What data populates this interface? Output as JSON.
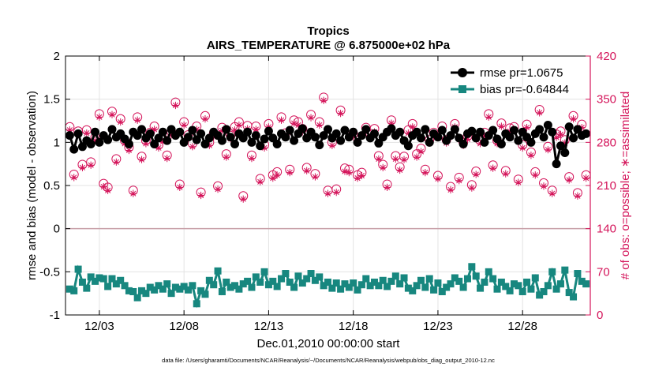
{
  "chart_data": {
    "type": "line",
    "title": "Tropics",
    "subtitle": "AIRS_TEMPERATURE @ 6.875000e+02 hPa",
    "xlabel": "Dec.01,2010 00:00:00 start",
    "ylabel": "rmse and bias (model - observation)",
    "ylabel_right": "# of obs: o=possible; ∗=assimilated",
    "footnote": "data file: /Users/gharamti/Documents/NCAR/Reanalysis/~/Documents/NCAR/Reanalysis/webpub/obs_diag_output_2010-12.nc",
    "xlim": [
      1.0,
      32.0
    ],
    "ylim": [
      -1,
      2
    ],
    "ylim_right": [
      0,
      420
    ],
    "x_ticks": [
      3,
      8,
      13,
      18,
      23,
      28
    ],
    "x_tick_labels": [
      "12/03",
      "12/08",
      "12/13",
      "12/18",
      "12/23",
      "12/28"
    ],
    "y_ticks": [
      -1,
      -0.5,
      0,
      0.5,
      1,
      1.5,
      2
    ],
    "y_tick_labels": [
      "-1",
      "-0.5",
      "0",
      "0.5",
      "1",
      "1.5",
      "2"
    ],
    "y_ticks_right": [
      0,
      70,
      140,
      210,
      280,
      350,
      420
    ],
    "y_tick_labels_right": [
      "0",
      "70",
      "140",
      "210",
      "280",
      "350",
      "420"
    ],
    "grid": true,
    "legend_position": "top-right",
    "zero_line_color": "#c8a0a8",
    "right_axis_color": "#d4145a",
    "series": [
      {
        "name": "rmse pr=1.0675",
        "axis": "left",
        "color": "#000000",
        "marker": "circle",
        "x": [
          1.25,
          1.5,
          1.75,
          2.0,
          2.25,
          2.5,
          2.75,
          3.0,
          3.25,
          3.5,
          3.75,
          4.0,
          4.25,
          4.5,
          4.75,
          5.0,
          5.25,
          5.5,
          5.75,
          6.0,
          6.25,
          6.5,
          6.75,
          7.0,
          7.25,
          7.5,
          7.75,
          8.0,
          8.25,
          8.5,
          8.75,
          9.0,
          9.25,
          9.5,
          9.75,
          10.0,
          10.25,
          10.5,
          10.75,
          11.0,
          11.25,
          11.5,
          11.75,
          12.0,
          12.25,
          12.5,
          12.75,
          13.0,
          13.25,
          13.5,
          13.75,
          14.0,
          14.25,
          14.5,
          14.75,
          15.0,
          15.25,
          15.5,
          15.75,
          16.0,
          16.25,
          16.5,
          16.75,
          17.0,
          17.25,
          17.5,
          17.75,
          18.0,
          18.25,
          18.5,
          18.75,
          19.0,
          19.25,
          19.5,
          19.75,
          20.0,
          20.25,
          20.5,
          20.75,
          21.0,
          21.25,
          21.5,
          21.75,
          22.0,
          22.25,
          22.5,
          22.75,
          23.0,
          23.25,
          23.5,
          23.75,
          24.0,
          24.25,
          24.5,
          24.75,
          25.0,
          25.25,
          25.5,
          25.75,
          26.0,
          26.25,
          26.5,
          26.75,
          27.0,
          27.25,
          27.5,
          27.75,
          28.0,
          28.25,
          28.5,
          28.75,
          29.0,
          29.25,
          29.5,
          29.75,
          30.0,
          30.25,
          30.5,
          30.75,
          31.0,
          31.25,
          31.5,
          31.75
        ],
        "values": [
          1.08,
          0.92,
          1.1,
          0.95,
          1.02,
          0.98,
          1.12,
          1.0,
          1.08,
          1.03,
          1.15,
          1.06,
          1.1,
          1.04,
          0.98,
          1.12,
          1.08,
          1.15,
          1.05,
          1.1,
          0.98,
          1.05,
          1.12,
          1.02,
          1.15,
          1.08,
          1.12,
          1.0,
          1.06,
          1.14,
          1.03,
          1.1,
          0.98,
          1.05,
          1.12,
          1.08,
          1.02,
          1.15,
          1.06,
          0.98,
          1.1,
          1.05,
          1.12,
          1.0,
          1.08,
          0.96,
          1.04,
          1.13,
          1.05,
          0.98,
          1.1,
          1.06,
          1.14,
          1.02,
          1.1,
          1.16,
          1.05,
          1.12,
          1.06,
          0.97,
          1.08,
          1.15,
          1.05,
          1.1,
          1.02,
          1.14,
          1.06,
          1.12,
          1.0,
          1.08,
          1.15,
          1.05,
          1.1,
          0.99,
          1.06,
          1.12,
          1.16,
          1.08,
          1.12,
          1.02,
          0.96,
          1.08,
          1.12,
          1.05,
          1.15,
          1.0,
          1.1,
          1.06,
          1.14,
          1.02,
          1.08,
          1.15,
          1.05,
          0.98,
          1.1,
          1.13,
          1.05,
          1.12,
          1.0,
          1.08,
          1.14,
          1.04,
          0.98,
          1.1,
          1.06,
          1.14,
          1.02,
          1.12,
          1.06,
          1.0,
          1.1,
          1.15,
          1.06,
          1.2,
          1.12,
          0.75,
          0.96,
          0.88,
          1.18,
          1.05,
          1.15,
          1.08,
          1.1
        ]
      },
      {
        "name": "bias pr=-0.64844",
        "axis": "left",
        "color": "#17877f",
        "marker": "square",
        "x": [
          1.25,
          1.5,
          1.75,
          2.0,
          2.25,
          2.5,
          2.75,
          3.0,
          3.25,
          3.5,
          3.75,
          4.0,
          4.25,
          4.5,
          4.75,
          5.0,
          5.25,
          5.5,
          5.75,
          6.0,
          6.25,
          6.5,
          6.75,
          7.0,
          7.25,
          7.5,
          7.75,
          8.0,
          8.25,
          8.5,
          8.75,
          9.0,
          9.25,
          9.5,
          9.75,
          10.0,
          10.25,
          10.5,
          10.75,
          11.0,
          11.25,
          11.5,
          11.75,
          12.0,
          12.25,
          12.5,
          12.75,
          13.0,
          13.25,
          13.5,
          13.75,
          14.0,
          14.25,
          14.5,
          14.75,
          15.0,
          15.25,
          15.5,
          15.75,
          16.0,
          16.25,
          16.5,
          16.75,
          17.0,
          17.25,
          17.5,
          17.75,
          18.0,
          18.25,
          18.5,
          18.75,
          19.0,
          19.25,
          19.5,
          19.75,
          20.0,
          20.25,
          20.5,
          20.75,
          21.0,
          21.25,
          21.5,
          21.75,
          22.0,
          22.25,
          22.5,
          22.75,
          23.0,
          23.25,
          23.5,
          23.75,
          24.0,
          24.25,
          24.5,
          24.75,
          25.0,
          25.25,
          25.5,
          25.75,
          26.0,
          26.25,
          26.5,
          26.75,
          27.0,
          27.25,
          27.5,
          27.75,
          28.0,
          28.25,
          28.5,
          28.75,
          29.0,
          29.25,
          29.5,
          29.75,
          30.0,
          30.25,
          30.5,
          30.75,
          31.0,
          31.25,
          31.5,
          31.75
        ],
        "values": [
          -0.7,
          -0.72,
          -0.47,
          -0.62,
          -0.69,
          -0.56,
          -0.61,
          -0.57,
          -0.58,
          -0.67,
          -0.58,
          -0.64,
          -0.6,
          -0.66,
          -0.72,
          -0.73,
          -0.8,
          -0.72,
          -0.75,
          -0.68,
          -0.71,
          -0.66,
          -0.7,
          -0.64,
          -0.75,
          -0.68,
          -0.7,
          -0.67,
          -0.71,
          -0.66,
          -0.87,
          -0.72,
          -0.76,
          -0.6,
          -0.65,
          -0.49,
          -0.73,
          -0.62,
          -0.68,
          -0.66,
          -0.7,
          -0.64,
          -0.61,
          -0.68,
          -0.56,
          -0.62,
          -0.5,
          -0.65,
          -0.61,
          -0.67,
          -0.58,
          -0.52,
          -0.62,
          -0.68,
          -0.55,
          -0.63,
          -0.58,
          -0.52,
          -0.6,
          -0.56,
          -0.66,
          -0.62,
          -0.69,
          -0.63,
          -0.7,
          -0.64,
          -0.68,
          -0.63,
          -0.71,
          -0.65,
          -0.58,
          -0.66,
          -0.62,
          -0.66,
          -0.6,
          -0.67,
          -0.61,
          -0.55,
          -0.64,
          -0.57,
          -0.69,
          -0.72,
          -0.66,
          -0.6,
          -0.68,
          -0.58,
          -0.71,
          -0.63,
          -0.73,
          -0.68,
          -0.64,
          -0.57,
          -0.61,
          -0.68,
          -0.58,
          -0.44,
          -0.55,
          -0.69,
          -0.62,
          -0.5,
          -0.58,
          -0.7,
          -0.62,
          -0.67,
          -0.72,
          -0.64,
          -0.66,
          -0.73,
          -0.62,
          -0.7,
          -0.57,
          -0.77,
          -0.73,
          -0.66,
          -0.5,
          -0.7,
          -0.64,
          -0.48,
          -0.74,
          -0.79,
          -0.52,
          -0.61,
          -0.64
        ]
      },
      {
        "name": "# of obs possible",
        "axis": "right",
        "color": "#d4145a",
        "marker": "circle-open",
        "x": [
          1.25,
          1.5,
          1.75,
          2.0,
          2.25,
          2.5,
          2.75,
          3.0,
          3.25,
          3.5,
          3.75,
          4.0,
          4.25,
          4.5,
          4.75,
          5.0,
          5.25,
          5.5,
          5.75,
          6.0,
          6.25,
          6.5,
          6.75,
          7.0,
          7.25,
          7.5,
          7.75,
          8.0,
          8.25,
          8.5,
          8.75,
          9.0,
          9.25,
          9.5,
          9.75,
          10.0,
          10.25,
          10.5,
          10.75,
          11.0,
          11.25,
          11.5,
          11.75,
          12.0,
          12.25,
          12.5,
          12.75,
          13.0,
          13.25,
          13.5,
          13.75,
          14.0,
          14.25,
          14.5,
          14.75,
          15.0,
          15.25,
          15.5,
          15.75,
          16.0,
          16.25,
          16.5,
          16.75,
          17.0,
          17.25,
          17.5,
          17.75,
          18.0,
          18.25,
          18.5,
          18.75,
          19.0,
          19.25,
          19.5,
          19.75,
          20.0,
          20.25,
          20.5,
          20.75,
          21.0,
          21.25,
          21.5,
          21.75,
          22.0,
          22.25,
          22.5,
          22.75,
          23.0,
          23.25,
          23.5,
          23.75,
          24.0,
          24.25,
          24.5,
          24.75,
          25.0,
          25.25,
          25.5,
          25.75,
          26.0,
          26.25,
          26.5,
          26.75,
          27.0,
          27.25,
          27.5,
          27.75,
          28.0,
          28.25,
          28.5,
          28.75,
          29.0,
          29.25,
          29.5,
          29.75,
          30.0,
          30.25,
          30.5,
          30.75,
          31.0,
          31.25,
          31.5,
          31.75
        ],
        "values": [
          305,
          228,
          298,
          244,
          300,
          248,
          288,
          326,
          213,
          207,
          330,
          253,
          318,
          283,
          272,
          202,
          321,
          257,
          283,
          296,
          306,
          276,
          286,
          259,
          297,
          345,
          212,
          313,
          292,
          278,
          306,
          199,
          323,
          280,
          294,
          209,
          304,
          261,
          291,
          305,
          313,
          193,
          307,
          259,
          306,
          221,
          276,
          310,
          227,
          232,
          321,
          295,
          236,
          316,
          313,
          302,
          239,
          325,
          229,
          313,
          353,
          202,
          280,
          204,
          332,
          238,
          236,
          294,
          227,
          231,
          304,
          294,
          302,
          258,
          244,
          212,
          316,
          258,
          240,
          257,
          300,
          310,
          261,
          270,
          236,
          284,
          296,
          226,
          306,
          284,
          208,
          310,
          223,
          280,
          290,
          211,
          233,
          283,
          296,
          326,
          243,
          283,
          311,
          234,
          303,
          305,
          220,
          276,
          309,
          264,
          232,
          333,
          214,
          273,
          202,
          293,
          298,
          284,
          224,
          323,
          198,
          309,
          227
        ]
      },
      {
        "name": "# of obs assimilated",
        "axis": "right",
        "color": "#d4145a",
        "marker": "asterisk",
        "x": [
          1.25,
          1.5,
          1.75,
          2.0,
          2.25,
          2.5,
          2.75,
          3.0,
          3.25,
          3.5,
          3.75,
          4.0,
          4.25,
          4.5,
          4.75,
          5.0,
          5.25,
          5.5,
          5.75,
          6.0,
          6.25,
          6.5,
          6.75,
          7.0,
          7.25,
          7.5,
          7.75,
          8.0,
          8.25,
          8.5,
          8.75,
          9.0,
          9.25,
          9.5,
          9.75,
          10.0,
          10.25,
          10.5,
          10.75,
          11.0,
          11.25,
          11.5,
          11.75,
          12.0,
          12.25,
          12.5,
          12.75,
          13.0,
          13.25,
          13.5,
          13.75,
          14.0,
          14.25,
          14.5,
          14.75,
          15.0,
          15.25,
          15.5,
          15.75,
          16.0,
          16.25,
          16.5,
          16.75,
          17.0,
          17.25,
          17.5,
          17.75,
          18.0,
          18.25,
          18.5,
          18.75,
          19.0,
          19.25,
          19.5,
          19.75,
          20.0,
          20.25,
          20.5,
          20.75,
          21.0,
          21.25,
          21.5,
          21.75,
          22.0,
          22.25,
          22.5,
          22.75,
          23.0,
          23.25,
          23.5,
          23.75,
          24.0,
          24.25,
          24.5,
          24.75,
          25.0,
          25.25,
          25.5,
          25.75,
          26.0,
          26.25,
          26.5,
          26.75,
          27.0,
          27.25,
          27.5,
          27.75,
          28.0,
          28.25,
          28.5,
          28.75,
          29.0,
          29.25,
          29.5,
          29.75,
          30.0,
          30.25,
          30.5,
          30.75,
          31.0,
          31.25,
          31.5,
          31.75
        ],
        "values": [
          300,
          223,
          293,
          239,
          295,
          243,
          283,
          321,
          208,
          202,
          325,
          248,
          313,
          278,
          267,
          197,
          316,
          252,
          278,
          291,
          301,
          271,
          281,
          254,
          292,
          340,
          207,
          308,
          287,
          273,
          301,
          194,
          318,
          275,
          289,
          204,
          299,
          256,
          286,
          300,
          308,
          188,
          302,
          254,
          301,
          216,
          271,
          305,
          222,
          227,
          316,
          290,
          231,
          311,
          308,
          297,
          234,
          320,
          224,
          308,
          348,
          197,
          275,
          199,
          327,
          233,
          231,
          289,
          222,
          226,
          299,
          289,
          297,
          253,
          239,
          207,
          311,
          253,
          235,
          252,
          295,
          305,
          256,
          265,
          231,
          279,
          291,
          221,
          301,
          279,
          203,
          305,
          218,
          275,
          285,
          206,
          228,
          278,
          291,
          321,
          238,
          278,
          306,
          229,
          298,
          300,
          215,
          271,
          304,
          259,
          227,
          328,
          209,
          268,
          197,
          288,
          293,
          279,
          219,
          318,
          193,
          304,
          222
        ]
      }
    ]
  }
}
